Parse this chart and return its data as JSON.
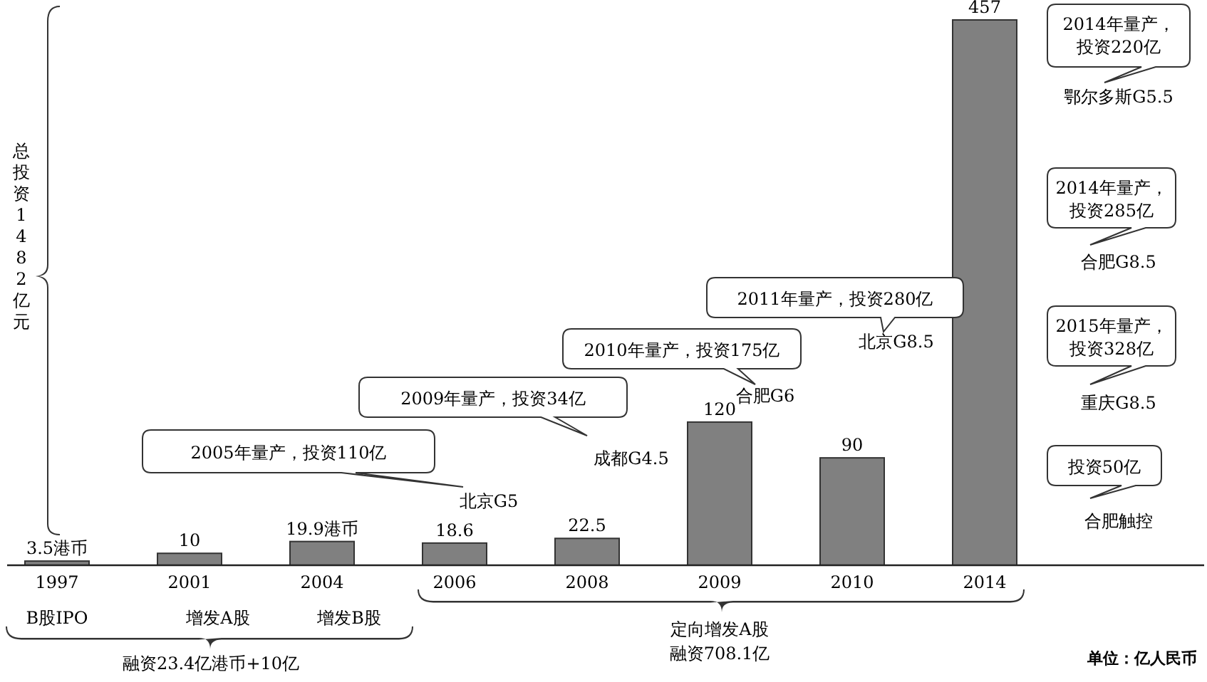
{
  "chart_data": {
    "type": "bar",
    "categories": [
      "1997",
      "2001",
      "2004",
      "2006",
      "2008",
      "2009",
      "2010",
      "2014"
    ],
    "values": [
      3.5,
      10,
      19.9,
      18.6,
      22.5,
      120,
      90,
      457
    ],
    "value_labels": [
      "3.5港币",
      "10",
      "19.9港币",
      "18.6",
      "22.5",
      "120",
      "90",
      "457"
    ],
    "color": "#808080",
    "annotations": [
      "B股IPO",
      "增发A股",
      "增发B股",
      "融资23.4亿港币+10亿",
      "定向增发A股",
      "融资708.1亿",
      "总投资1482亿元",
      "2005年量产，投资110亿",
      "北京G5",
      "2009年量产，投资34亿",
      "成都G4.5",
      "2010年量产，投资175亿",
      "合肥G6",
      "2011年量产，投资280亿",
      "北京G8.5",
      "2014年量产，投资220亿",
      "鄂尔多斯G5.5",
      "2014年量产，投资285亿",
      "合肥G8.5",
      "2015年量产，投资328亿",
      "重庆G8.5",
      "投资50亿",
      "合肥触控",
      "单位：亿人民币"
    ]
  }
}
